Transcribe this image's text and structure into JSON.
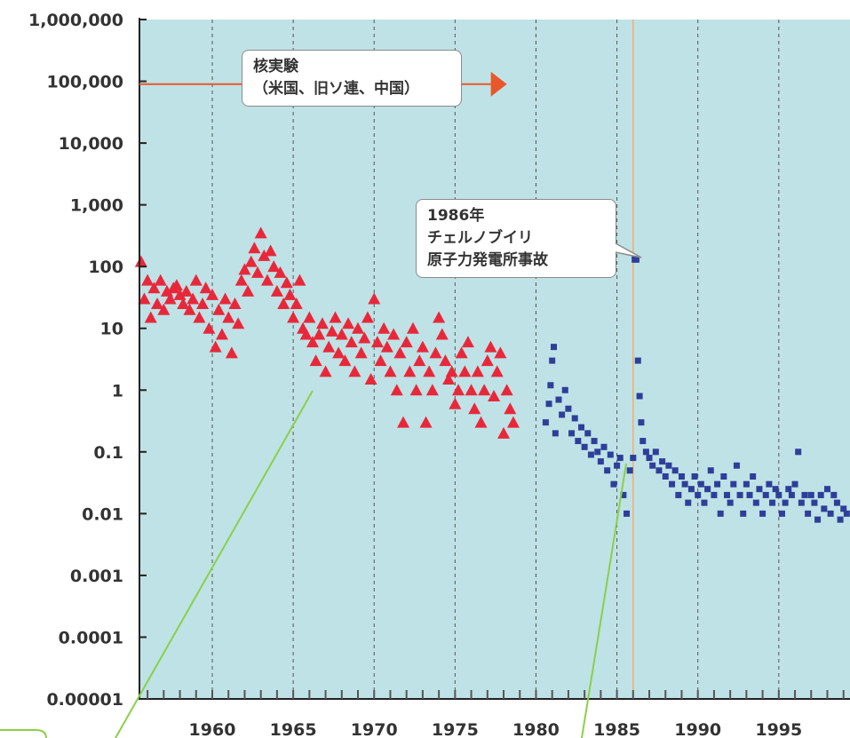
{
  "chart_data": {
    "type": "scatter",
    "y_scale": "log",
    "ylim": [
      1e-05,
      1000000
    ],
    "xlim": [
      1955.5,
      1999.4
    ],
    "y_tick_labels": [
      "1,000,000",
      "100,000",
      "10,000",
      "1,000",
      "100",
      "10",
      "1",
      "0.1",
      "0.01",
      "0.001",
      "0.0001",
      "0.00001"
    ],
    "y_tick_values": [
      1000000,
      100000,
      10000,
      1000,
      100,
      10,
      1,
      0.1,
      0.01,
      0.001,
      0.0001,
      1e-05
    ],
    "x_tick_labels": [
      "1960",
      "1965",
      "1970",
      "1975",
      "1980",
      "1985",
      "1990",
      "1995"
    ],
    "x_tick_values": [
      1960,
      1965,
      1970,
      1975,
      1980,
      1985,
      1990,
      1995
    ],
    "grid": "vertical dashed every 5 years",
    "background_color": "#bfe2e6",
    "annotations": {
      "nuclear_tests": {
        "lines": [
          "核実験",
          "（米国、旧ソ連、中国）"
        ],
        "arrow_y": 90000,
        "arrow_x_end": 1978.2,
        "color": "#e8582a"
      },
      "chernobyl": {
        "lines": [
          "1986年",
          "チェルノブイリ",
          "原子力発電所事故"
        ],
        "line_x": 1986,
        "color": "#f2b06a"
      }
    },
    "series": [
      {
        "marker": "triangle",
        "color": "#e8283a",
        "points": [
          [
            1955.6,
            120
          ],
          [
            1955.8,
            30
          ],
          [
            1956.0,
            60
          ],
          [
            1956.2,
            15
          ],
          [
            1956.4,
            45
          ],
          [
            1956.6,
            25
          ],
          [
            1956.8,
            60
          ],
          [
            1957.0,
            20
          ],
          [
            1957.2,
            40
          ],
          [
            1957.4,
            30
          ],
          [
            1957.6,
            45
          ],
          [
            1957.8,
            50
          ],
          [
            1958.0,
            35
          ],
          [
            1958.2,
            25
          ],
          [
            1958.4,
            40
          ],
          [
            1958.6,
            20
          ],
          [
            1958.8,
            30
          ],
          [
            1959.0,
            60
          ],
          [
            1959.2,
            15
          ],
          [
            1959.4,
            25
          ],
          [
            1959.6,
            45
          ],
          [
            1959.8,
            10
          ],
          [
            1960.0,
            35
          ],
          [
            1960.2,
            5
          ],
          [
            1960.4,
            20
          ],
          [
            1960.6,
            8
          ],
          [
            1960.8,
            30
          ],
          [
            1961.0,
            15
          ],
          [
            1961.2,
            4
          ],
          [
            1961.4,
            25
          ],
          [
            1961.6,
            12
          ],
          [
            1961.8,
            60
          ],
          [
            1962.0,
            90
          ],
          [
            1962.2,
            40
          ],
          [
            1962.4,
            120
          ],
          [
            1962.6,
            200
          ],
          [
            1962.8,
            80
          ],
          [
            1963.0,
            350
          ],
          [
            1963.2,
            150
          ],
          [
            1963.4,
            60
          ],
          [
            1963.6,
            180
          ],
          [
            1963.8,
            100
          ],
          [
            1964.0,
            40
          ],
          [
            1964.2,
            80
          ],
          [
            1964.4,
            25
          ],
          [
            1964.6,
            55
          ],
          [
            1964.8,
            35
          ],
          [
            1965.0,
            15
          ],
          [
            1965.2,
            25
          ],
          [
            1965.4,
            60
          ],
          [
            1965.6,
            10
          ],
          [
            1965.8,
            8
          ],
          [
            1966.0,
            15
          ],
          [
            1966.2,
            6
          ],
          [
            1966.4,
            3
          ],
          [
            1966.6,
            8
          ],
          [
            1966.8,
            12
          ],
          [
            1967.0,
            2
          ],
          [
            1967.2,
            5
          ],
          [
            1967.4,
            9
          ],
          [
            1967.6,
            15
          ],
          [
            1967.8,
            4
          ],
          [
            1968.0,
            8
          ],
          [
            1968.2,
            3
          ],
          [
            1968.4,
            12
          ],
          [
            1968.6,
            6
          ],
          [
            1968.8,
            2
          ],
          [
            1969.0,
            10
          ],
          [
            1969.2,
            4
          ],
          [
            1969.4,
            7
          ],
          [
            1969.6,
            15
          ],
          [
            1969.8,
            1.5
          ],
          [
            1970.0,
            30
          ],
          [
            1970.2,
            6
          ],
          [
            1970.4,
            3
          ],
          [
            1970.6,
            10
          ],
          [
            1970.8,
            5
          ],
          [
            1971.0,
            2
          ],
          [
            1971.2,
            8
          ],
          [
            1971.4,
            1
          ],
          [
            1971.6,
            4
          ],
          [
            1971.8,
            0.3
          ],
          [
            1972.0,
            6
          ],
          [
            1972.2,
            2
          ],
          [
            1972.4,
            10
          ],
          [
            1972.6,
            1
          ],
          [
            1972.8,
            3
          ],
          [
            1973.0,
            5
          ],
          [
            1973.2,
            0.3
          ],
          [
            1973.4,
            2
          ],
          [
            1973.6,
            1
          ],
          [
            1973.8,
            4
          ],
          [
            1974.0,
            15
          ],
          [
            1974.2,
            8
          ],
          [
            1974.4,
            3
          ],
          [
            1974.6,
            1.5
          ],
          [
            1974.8,
            2
          ],
          [
            1975.0,
            0.6
          ],
          [
            1975.2,
            1
          ],
          [
            1975.4,
            4
          ],
          [
            1975.6,
            2
          ],
          [
            1975.8,
            6
          ],
          [
            1976.0,
            1
          ],
          [
            1976.2,
            0.5
          ],
          [
            1976.4,
            2
          ],
          [
            1976.6,
            0.3
          ],
          [
            1976.8,
            1
          ],
          [
            1977.0,
            3
          ],
          [
            1977.2,
            5
          ],
          [
            1977.4,
            0.8
          ],
          [
            1977.6,
            2
          ],
          [
            1977.8,
            4
          ],
          [
            1978.0,
            0.2
          ],
          [
            1978.2,
            1
          ],
          [
            1978.4,
            0.5
          ],
          [
            1978.6,
            0.3
          ]
        ]
      },
      {
        "marker": "square",
        "color": "#2d3f9a",
        "points": [
          [
            1980.6,
            0.3
          ],
          [
            1980.8,
            0.6
          ],
          [
            1980.9,
            1.2
          ],
          [
            1981.0,
            3
          ],
          [
            1981.1,
            5
          ],
          [
            1981.2,
            0.2
          ],
          [
            1981.4,
            0.7
          ],
          [
            1981.6,
            0.4
          ],
          [
            1981.8,
            1
          ],
          [
            1982.0,
            0.5
          ],
          [
            1982.2,
            0.2
          ],
          [
            1982.4,
            0.35
          ],
          [
            1982.6,
            0.15
          ],
          [
            1982.8,
            0.25
          ],
          [
            1983.0,
            0.12
          ],
          [
            1983.2,
            0.2
          ],
          [
            1983.4,
            0.09
          ],
          [
            1983.6,
            0.15
          ],
          [
            1983.8,
            0.1
          ],
          [
            1984.0,
            0.07
          ],
          [
            1984.2,
            0.12
          ],
          [
            1984.4,
            0.05
          ],
          [
            1984.6,
            0.09
          ],
          [
            1984.8,
            0.03
          ],
          [
            1985.0,
            0.06
          ],
          [
            1985.2,
            0.08
          ],
          [
            1985.4,
            0.02
          ],
          [
            1985.6,
            0.01
          ],
          [
            1985.8,
            0.05
          ],
          [
            1986.0,
            0.08
          ],
          [
            1986.1,
            130
          ],
          [
            1986.2,
            130
          ],
          [
            1986.3,
            3
          ],
          [
            1986.4,
            0.8
          ],
          [
            1986.5,
            0.3
          ],
          [
            1986.6,
            0.15
          ],
          [
            1986.8,
            0.1
          ],
          [
            1987.0,
            0.08
          ],
          [
            1987.2,
            0.06
          ],
          [
            1987.4,
            0.1
          ],
          [
            1987.6,
            0.05
          ],
          [
            1987.8,
            0.07
          ],
          [
            1988.0,
            0.04
          ],
          [
            1988.2,
            0.06
          ],
          [
            1988.4,
            0.03
          ],
          [
            1988.6,
            0.05
          ],
          [
            1988.8,
            0.02
          ],
          [
            1989.0,
            0.04
          ],
          [
            1989.2,
            0.03
          ],
          [
            1989.4,
            0.015
          ],
          [
            1989.6,
            0.025
          ],
          [
            1989.8,
            0.04
          ],
          [
            1990.0,
            0.02
          ],
          [
            1990.2,
            0.03
          ],
          [
            1990.4,
            0.015
          ],
          [
            1990.6,
            0.025
          ],
          [
            1990.8,
            0.05
          ],
          [
            1991.0,
            0.02
          ],
          [
            1991.2,
            0.03
          ],
          [
            1991.4,
            0.01
          ],
          [
            1991.6,
            0.04
          ],
          [
            1991.8,
            0.02
          ],
          [
            1992.0,
            0.015
          ],
          [
            1992.2,
            0.03
          ],
          [
            1992.4,
            0.06
          ],
          [
            1992.6,
            0.02
          ],
          [
            1992.8,
            0.01
          ],
          [
            1993.0,
            0.03
          ],
          [
            1993.2,
            0.02
          ],
          [
            1993.4,
            0.04
          ],
          [
            1993.6,
            0.015
          ],
          [
            1993.8,
            0.025
          ],
          [
            1994.0,
            0.01
          ],
          [
            1994.2,
            0.02
          ],
          [
            1994.4,
            0.03
          ],
          [
            1994.6,
            0.015
          ],
          [
            1994.8,
            0.025
          ],
          [
            1995.0,
            0.02
          ],
          [
            1995.2,
            0.01
          ],
          [
            1995.4,
            0.015
          ],
          [
            1995.6,
            0.025
          ],
          [
            1995.8,
            0.02
          ],
          [
            1996.0,
            0.03
          ],
          [
            1996.2,
            0.1
          ],
          [
            1996.4,
            0.015
          ],
          [
            1996.6,
            0.02
          ],
          [
            1996.8,
            0.01
          ],
          [
            1997.0,
            0.02
          ],
          [
            1997.2,
            0.015
          ],
          [
            1997.4,
            0.008
          ],
          [
            1997.6,
            0.02
          ],
          [
            1997.8,
            0.012
          ],
          [
            1998.0,
            0.025
          ],
          [
            1998.2,
            0.01
          ],
          [
            1998.4,
            0.02
          ],
          [
            1998.6,
            0.015
          ],
          [
            1998.8,
            0.008
          ],
          [
            1999.0,
            0.012
          ],
          [
            1999.2,
            0.01
          ]
        ]
      }
    ]
  },
  "legend_box": {
    "text": ""
  }
}
